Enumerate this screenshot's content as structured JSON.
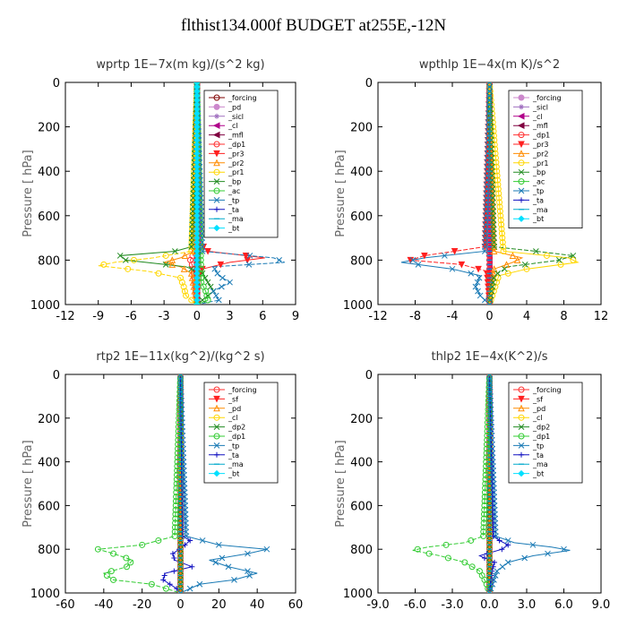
{
  "page": {
    "title": "flthist134.000f  BUDGET at255E,-12N"
  },
  "chart_data": [
    {
      "type": "line",
      "title": "wprtp   1E−7x(m kg)/(s^2 kg)",
      "ylabel": "Pressure  [ hPa]",
      "xlim": [
        -12,
        9
      ],
      "ylim": [
        1000,
        0
      ],
      "xticks": [
        -12,
        -9,
        -6,
        -3,
        0,
        3,
        6,
        9
      ],
      "xtick_labels": [
        "-12",
        "-9",
        "-6",
        "-3",
        "0",
        "3",
        "6",
        "9"
      ],
      "yticks": [
        0,
        200,
        400,
        600,
        800,
        1000
      ],
      "ytick_labels": [
        "0",
        "200",
        "400",
        "600",
        "800",
        "1000"
      ],
      "legend_position": "top-right",
      "series": [
        {
          "name": "_forcing",
          "color": "#7f0000",
          "marker": "circle-open",
          "p": [
            0,
            1000
          ],
          "x": [
            0,
            0
          ]
        },
        {
          "name": "_pd",
          "color": "#cc88cc",
          "marker": "circle",
          "p": [
            0,
            1000
          ],
          "x": [
            0,
            0
          ]
        },
        {
          "name": "_sicl",
          "color": "#a070c0",
          "marker": "star",
          "p": [
            0,
            1000
          ],
          "x": [
            0,
            0
          ]
        },
        {
          "name": "_cl",
          "color": "#b0008a",
          "marker": "triangle-left",
          "p": [
            0,
            1000
          ],
          "x": [
            0,
            0
          ]
        },
        {
          "name": "_mfl",
          "color": "#800040",
          "marker": "triangle-left",
          "p": [
            0,
            1000
          ],
          "x": [
            0,
            0
          ]
        },
        {
          "name": "_dp1",
          "color": "#ff3030",
          "marker": "circle-open",
          "p": [
            0,
            760,
            800,
            840,
            1000
          ],
          "x": [
            0,
            -0.2,
            -0.6,
            -0.3,
            0
          ]
        },
        {
          "name": "_pr3",
          "color": "#ff2020",
          "marker": "triangle-down",
          "p": [
            0,
            720,
            760,
            790,
            810,
            840,
            880,
            1000
          ],
          "x": [
            0,
            0.2,
            1.0,
            6.2,
            3.0,
            0.5,
            0.1,
            0
          ]
        },
        {
          "name": "_pr2",
          "color": "#ff8c00",
          "marker": "triangle-up",
          "p": [
            0,
            760,
            790,
            810,
            830,
            860,
            1000
          ],
          "x": [
            0,
            -0.3,
            -1.5,
            -3.0,
            -1.5,
            -0.5,
            0
          ]
        },
        {
          "name": "_pr1",
          "color": "#ffd700",
          "marker": "circle-open",
          "p": [
            0,
            760,
            790,
            810,
            825,
            850,
            880,
            920,
            960,
            1000
          ],
          "x": [
            0,
            -0.5,
            -4.0,
            -7.5,
            -9.0,
            -4.5,
            -1.5,
            -1.2,
            -1.0,
            0
          ]
        },
        {
          "name": "_bp",
          "color": "#228b22",
          "marker": "x",
          "p": [
            0,
            740,
            760,
            780,
            800,
            830,
            860,
            900,
            940,
            980,
            1000
          ],
          "x": [
            0,
            -0.5,
            -2.0,
            -7.0,
            -6.5,
            -1.0,
            0.5,
            1.0,
            1.5,
            0.5,
            0
          ]
        },
        {
          "name": "_ac",
          "color": "#33cc33",
          "marker": "circle-open",
          "p": [
            0,
            900,
            940,
            980,
            1000
          ],
          "x": [
            0,
            0.4,
            0.8,
            1.0,
            0
          ]
        },
        {
          "name": "_tp",
          "color": "#1a7ab5",
          "marker": "x",
          "p": [
            0,
            760,
            790,
            810,
            830,
            870,
            900,
            940,
            980,
            1000
          ],
          "x": [
            0,
            0.5,
            7.0,
            8.0,
            1.5,
            2.0,
            3.0,
            1.5,
            2.0,
            0
          ]
        },
        {
          "name": "_ta",
          "color": "#1010c0",
          "marker": "plus",
          "p": [
            0,
            1000
          ],
          "x": [
            0,
            0
          ]
        },
        {
          "name": "_ma",
          "color": "#00aacc",
          "marker": "dash",
          "p": [
            0,
            1000
          ],
          "x": [
            0,
            0
          ]
        },
        {
          "name": "_bt",
          "color": "#00e0ff",
          "marker": "diamond",
          "p": [
            0,
            1000
          ],
          "x": [
            0,
            0
          ]
        }
      ]
    },
    {
      "type": "line",
      "title": "wpthlp   1E−4x(m K)/s^2",
      "ylabel": "Pressure  [ hPa]",
      "xlim": [
        -12,
        12
      ],
      "ylim": [
        1000,
        0
      ],
      "xticks": [
        -12,
        -8,
        -4,
        0,
        4,
        8,
        12
      ],
      "xtick_labels": [
        "-12",
        "-8",
        "-4",
        "0",
        "4",
        "8",
        "12"
      ],
      "yticks": [
        0,
        200,
        400,
        600,
        800,
        1000
      ],
      "ytick_labels": [
        "0",
        "200",
        "400",
        "600",
        "800",
        "1000"
      ],
      "legend_position": "top-right",
      "series": [
        {
          "name": "_forcing",
          "color": "#cc88cc",
          "marker": "circle",
          "p": [
            0,
            1000
          ],
          "x": [
            0,
            0
          ]
        },
        {
          "name": "_sicl",
          "color": "#a070c0",
          "marker": "star",
          "p": [
            0,
            1000
          ],
          "x": [
            0,
            0
          ]
        },
        {
          "name": "_cl",
          "color": "#b0008a",
          "marker": "triangle-left",
          "p": [
            0,
            1000
          ],
          "x": [
            0,
            0
          ]
        },
        {
          "name": "_mfl",
          "color": "#800040",
          "marker": "triangle-left",
          "p": [
            0,
            1000
          ],
          "x": [
            0,
            0
          ]
        },
        {
          "name": "_dp1",
          "color": "#ff3030",
          "marker": "circle-open",
          "p": [
            0,
            1000
          ],
          "x": [
            0,
            0
          ]
        },
        {
          "name": "_pr3",
          "color": "#ff2020",
          "marker": "triangle-down",
          "p": [
            0,
            740,
            780,
            800,
            820,
            850,
            1000
          ],
          "x": [
            0,
            -0.5,
            -7.0,
            -8.5,
            -3.0,
            -0.3,
            0
          ]
        },
        {
          "name": "_pr2",
          "color": "#ff8c00",
          "marker": "triangle-up",
          "p": [
            0,
            760,
            790,
            810,
            840,
            1000
          ],
          "x": [
            0,
            0.5,
            3.5,
            2.5,
            0.5,
            0
          ]
        },
        {
          "name": "_pr1",
          "color": "#ffd700",
          "marker": "circle-open",
          "p": [
            0,
            760,
            790,
            810,
            840,
            870,
            1000
          ],
          "x": [
            0,
            1.5,
            8.5,
            9.5,
            4.0,
            1.0,
            0
          ]
        },
        {
          "name": "_bp",
          "color": "#228b22",
          "marker": "x",
          "p": [
            0,
            740,
            760,
            780,
            800,
            830,
            870,
            1000
          ],
          "x": [
            0,
            0.5,
            5.0,
            9.0,
            7.5,
            2.0,
            0.5,
            0
          ]
        },
        {
          "name": "_ac",
          "color": "#33cc33",
          "marker": "circle-open",
          "p": [
            0,
            1000
          ],
          "x": [
            0,
            0
          ]
        },
        {
          "name": "_tp",
          "color": "#1a7ab5",
          "marker": "x",
          "p": [
            0,
            760,
            790,
            810,
            840,
            870,
            920,
            960,
            1000
          ],
          "x": [
            0,
            -0.5,
            -7.0,
            -9.5,
            -4.0,
            -1.0,
            -1.5,
            -1.0,
            0
          ]
        },
        {
          "name": "_ta",
          "color": "#1010c0",
          "marker": "plus",
          "p": [
            0,
            1000
          ],
          "x": [
            0,
            0
          ]
        },
        {
          "name": "_ma",
          "color": "#00aacc",
          "marker": "dash",
          "p": [
            0,
            1000
          ],
          "x": [
            0,
            0
          ]
        },
        {
          "name": "_bt",
          "color": "#00e0ff",
          "marker": "diamond",
          "p": [
            0,
            1000
          ],
          "x": [
            0,
            0
          ]
        }
      ]
    },
    {
      "type": "line",
      "title": "rtp2   1E−11x(kg^2)/(kg^2 s)",
      "ylabel": "Pressure  [ hPa]",
      "xlim": [
        -60,
        60
      ],
      "ylim": [
        1000,
        0
      ],
      "xticks": [
        -60,
        -40,
        -20,
        0,
        20,
        40,
        60
      ],
      "xtick_labels": [
        "-60",
        "-40",
        "-20",
        "0",
        "20",
        "40",
        "60"
      ],
      "yticks": [
        0,
        200,
        400,
        600,
        800,
        1000
      ],
      "ytick_labels": [
        "0",
        "200",
        "400",
        "600",
        "800",
        "1000"
      ],
      "legend_position": "top-right",
      "series": [
        {
          "name": "_forcing",
          "color": "#ff3030",
          "marker": "circle-open",
          "p": [
            0,
            1000
          ],
          "x": [
            0,
            0
          ]
        },
        {
          "name": "_sf",
          "color": "#ff2020",
          "marker": "triangle-down",
          "p": [
            0,
            1000
          ],
          "x": [
            0,
            0
          ]
        },
        {
          "name": "_pd",
          "color": "#ff8c00",
          "marker": "triangle-up",
          "p": [
            0,
            1000
          ],
          "x": [
            0,
            0
          ]
        },
        {
          "name": "_cl",
          "color": "#ffd700",
          "marker": "circle-open",
          "p": [
            0,
            1000
          ],
          "x": [
            0,
            0
          ]
        },
        {
          "name": "_dp2",
          "color": "#228b22",
          "marker": "x",
          "p": [
            0,
            1000
          ],
          "x": [
            0,
            0
          ]
        },
        {
          "name": "_dp1",
          "color": "#33cc33",
          "marker": "circle-open",
          "p": [
            0,
            740,
            780,
            800,
            820,
            850,
            880,
            910,
            940,
            960,
            1000
          ],
          "x": [
            0,
            -3,
            -20,
            -43,
            -35,
            -25,
            -28,
            -40,
            -35,
            -15,
            0
          ]
        },
        {
          "name": "_tp",
          "color": "#1a7ab5",
          "marker": "x",
          "p": [
            0,
            740,
            780,
            800,
            820,
            850,
            880,
            910,
            940,
            960,
            1000
          ],
          "x": [
            0,
            3,
            20,
            45,
            35,
            15,
            25,
            40,
            28,
            10,
            0
          ]
        },
        {
          "name": "_ta",
          "color": "#1010c0",
          "marker": "plus",
          "p": [
            0,
            740,
            760,
            790,
            820,
            850,
            880,
            910,
            940,
            980,
            1000
          ],
          "x": [
            0,
            1,
            5,
            1,
            -4,
            -3,
            6,
            -8,
            -9,
            -2,
            0
          ]
        },
        {
          "name": "_ma",
          "color": "#00aacc",
          "marker": "dash",
          "p": [
            0,
            1000
          ],
          "x": [
            0,
            0
          ]
        },
        {
          "name": "_bt",
          "color": "#00e0ff",
          "marker": "diamond",
          "p": [
            0,
            1000
          ],
          "x": [
            0,
            0
          ]
        }
      ]
    },
    {
      "type": "line",
      "title": "thlp2   1E−4x(K^2)/s",
      "ylabel": "Pressure  [ hPa]",
      "xlim": [
        -9,
        9
      ],
      "ylim": [
        1000,
        0
      ],
      "xticks": [
        -9,
        -6,
        -3,
        0,
        3,
        6,
        9
      ],
      "xtick_labels": [
        "-9.0",
        "-6.0",
        "-3.0",
        "0.0",
        "3.0",
        "6.0",
        "9.0"
      ],
      "yticks": [
        0,
        200,
        400,
        600,
        800,
        1000
      ],
      "ytick_labels": [
        "0",
        "200",
        "400",
        "600",
        "800",
        "1000"
      ],
      "legend_position": "top-right",
      "series": [
        {
          "name": "_forcing",
          "color": "#ff3030",
          "marker": "circle-open",
          "p": [
            0,
            1000
          ],
          "x": [
            0,
            0
          ]
        },
        {
          "name": "_sf",
          "color": "#ff2020",
          "marker": "triangle-down",
          "p": [
            0,
            1000
          ],
          "x": [
            0,
            0
          ]
        },
        {
          "name": "_pd",
          "color": "#ff8c00",
          "marker": "triangle-up",
          "p": [
            0,
            1000
          ],
          "x": [
            0,
            0
          ]
        },
        {
          "name": "_cl",
          "color": "#ffd700",
          "marker": "circle-open",
          "p": [
            0,
            1000
          ],
          "x": [
            0,
            0
          ]
        },
        {
          "name": "_dp2",
          "color": "#228b22",
          "marker": "x",
          "p": [
            0,
            1000
          ],
          "x": [
            0,
            0
          ]
        },
        {
          "name": "_dp1",
          "color": "#33cc33",
          "marker": "circle-open",
          "p": [
            0,
            740,
            770,
            790,
            805,
            830,
            860,
            900,
            950,
            1000
          ],
          "x": [
            0,
            -0.5,
            -2.0,
            -5.0,
            -6.2,
            -4.0,
            -2.0,
            -0.8,
            -0.3,
            0
          ]
        },
        {
          "name": "_tp",
          "color": "#1a7ab5",
          "marker": "x",
          "p": [
            0,
            740,
            770,
            790,
            805,
            830,
            860,
            900,
            950,
            1000
          ],
          "x": [
            0,
            0.5,
            2.0,
            5.0,
            6.5,
            3.5,
            1.5,
            0.6,
            0.3,
            0
          ]
        },
        {
          "name": "_ta",
          "color": "#1010c0",
          "marker": "plus",
          "p": [
            0,
            740,
            760,
            780,
            800,
            830,
            860,
            900,
            1000
          ],
          "x": [
            0,
            0.3,
            0.8,
            1.5,
            1.0,
            -0.8,
            0.4,
            0.2,
            0
          ]
        },
        {
          "name": "_ma",
          "color": "#00aacc",
          "marker": "dash",
          "p": [
            0,
            1000
          ],
          "x": [
            0,
            0
          ]
        },
        {
          "name": "_bt",
          "color": "#00e0ff",
          "marker": "diamond",
          "p": [
            0,
            1000
          ],
          "x": [
            0,
            0
          ]
        }
      ]
    }
  ]
}
